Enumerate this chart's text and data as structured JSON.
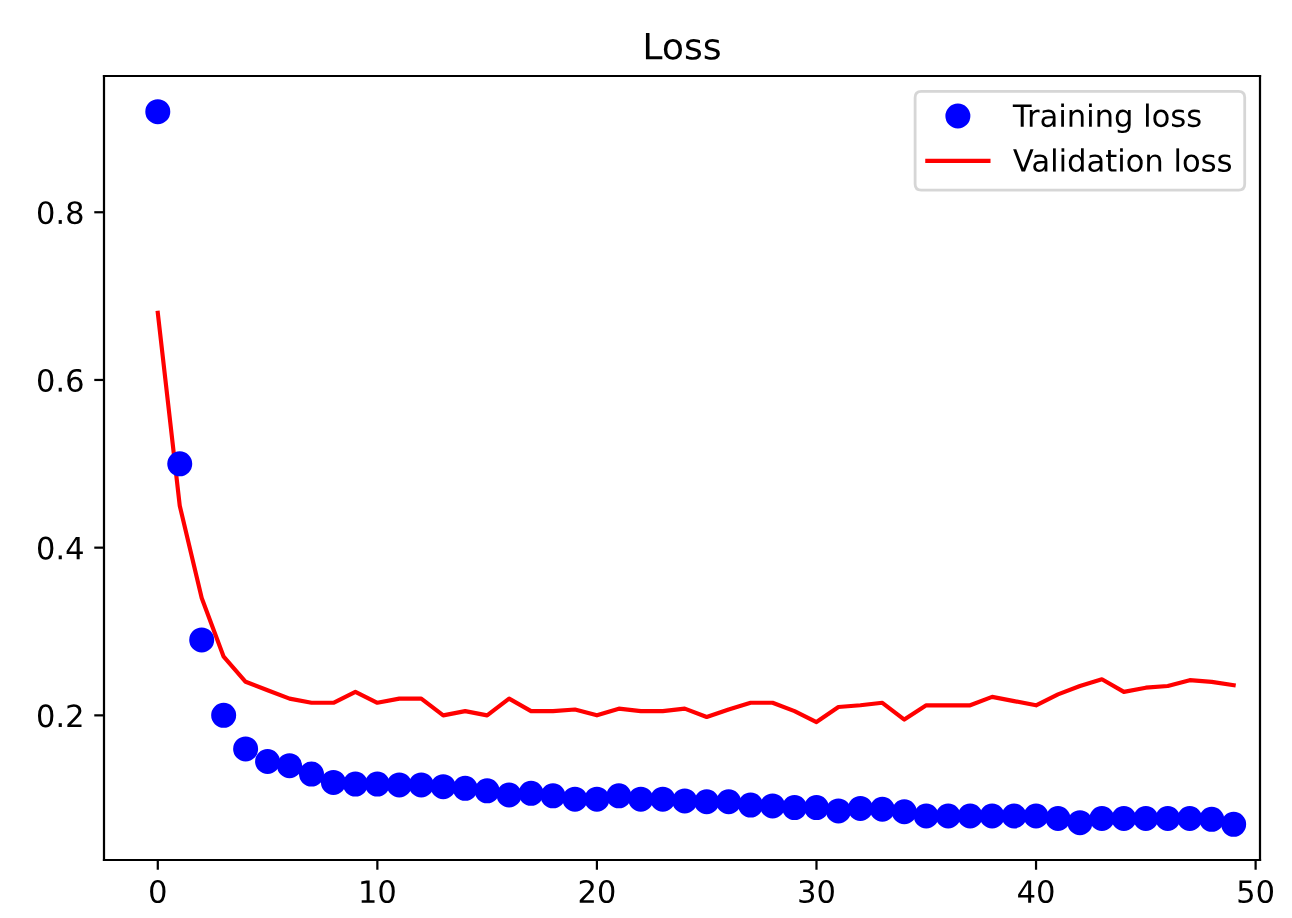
{
  "chart_data": {
    "type": "scatter",
    "title": "Loss",
    "x": [
      0,
      1,
      2,
      3,
      4,
      5,
      6,
      7,
      8,
      9,
      10,
      11,
      12,
      13,
      14,
      15,
      16,
      17,
      18,
      19,
      20,
      21,
      22,
      23,
      24,
      25,
      26,
      27,
      28,
      29,
      30,
      31,
      32,
      33,
      34,
      35,
      36,
      37,
      38,
      39,
      40,
      41,
      42,
      43,
      44,
      45,
      46,
      47,
      48,
      49
    ],
    "series": [
      {
        "name": "Training loss",
        "marker": "circle",
        "color": "#0000ff",
        "values": [
          0.92,
          0.5,
          0.29,
          0.2,
          0.16,
          0.145,
          0.14,
          0.13,
          0.12,
          0.118,
          0.118,
          0.117,
          0.117,
          0.115,
          0.113,
          0.11,
          0.105,
          0.107,
          0.104,
          0.1,
          0.1,
          0.104,
          0.1,
          0.1,
          0.098,
          0.097,
          0.097,
          0.093,
          0.092,
          0.09,
          0.09,
          0.086,
          0.089,
          0.088,
          0.085,
          0.08,
          0.08,
          0.08,
          0.08,
          0.08,
          0.08,
          0.077,
          0.072,
          0.077,
          0.077,
          0.077,
          0.077,
          0.077,
          0.076,
          0.07
        ]
      },
      {
        "name": "Validation loss",
        "type": "line",
        "color": "#ff0000",
        "values": [
          0.68,
          0.45,
          0.34,
          0.27,
          0.24,
          0.23,
          0.22,
          0.215,
          0.215,
          0.228,
          0.215,
          0.22,
          0.22,
          0.2,
          0.205,
          0.2,
          0.22,
          0.205,
          0.205,
          0.207,
          0.2,
          0.208,
          0.205,
          0.205,
          0.208,
          0.198,
          0.207,
          0.215,
          0.215,
          0.205,
          0.192,
          0.21,
          0.212,
          0.215,
          0.195,
          0.212,
          0.212,
          0.212,
          0.222,
          0.217,
          0.212,
          0.225,
          0.235,
          0.243,
          0.228,
          0.233,
          0.235,
          0.242,
          0.24,
          0.236
        ]
      }
    ],
    "xlim": [
      -2.45,
      50.2
    ],
    "xticks": [
      0,
      10,
      20,
      30,
      40,
      50
    ],
    "ylim": [
      0.0275,
      0.9625
    ],
    "yticks": [
      0.2,
      0.4,
      0.6,
      0.8
    ],
    "legend": "top right",
    "grid": false
  }
}
